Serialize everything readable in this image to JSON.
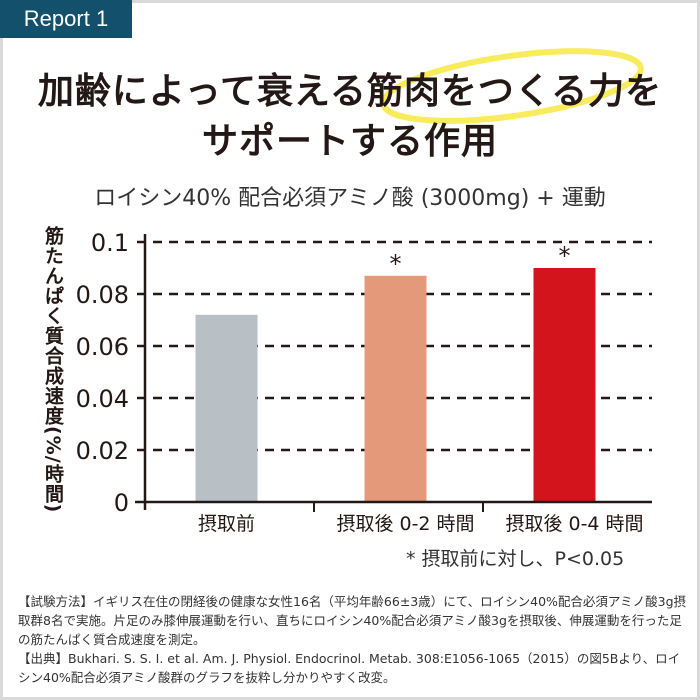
{
  "badge": "Report 1",
  "title": {
    "line1": "加齢によって衰える筋肉をつくる力を",
    "line2": "サポートする作用"
  },
  "colors": {
    "badge": "#13506b",
    "highlight": "#f7ea4a"
  },
  "chart_data": {
    "type": "bar",
    "title": "ロイシン40% 配合必須アミノ酸 (3000mg) + 運動",
    "ylabel": "筋たんぱく質合成速度(%/時間)",
    "xlabel": "",
    "categories": [
      "摂取前",
      "摂取後 0-2 時間",
      "摂取後 0-4 時間"
    ],
    "values": [
      0.072,
      0.087,
      0.09
    ],
    "colors": [
      "#b8c0c5",
      "#e49a7a",
      "#d4141d"
    ],
    "significance": [
      "",
      "*",
      "*"
    ],
    "ylim": [
      0,
      0.1
    ],
    "yticks": [
      "0",
      "0.02",
      "0.04",
      "0.06",
      "0.08",
      "0.1"
    ],
    "grid": "dashed horizontal",
    "note": "* 摂取前に対し、P<0.05"
  },
  "footnote": {
    "method": "【試験方法】イギリス在住の閉経後の健康な女性16名（平均年齢66±3歳）にて、ロイシン40%配合必須アミノ酸3g摂取群8名で実施。片足のみ膝伸展運動を行い、直ちにロイシン40%配合必須アミノ酸3gを摂取後、伸展運動を行った足の筋たんぱく質合成速度を測定。",
    "source": "【出典】Bukhari. S. S. I. et al. Am. J. Physiol. Endocrinol. Metab. 308:E1056-1065（2015）の図5Bより、ロイシン40%配合必須アミノ酸群のグラフを抜粋し分かりやすく改変。"
  }
}
